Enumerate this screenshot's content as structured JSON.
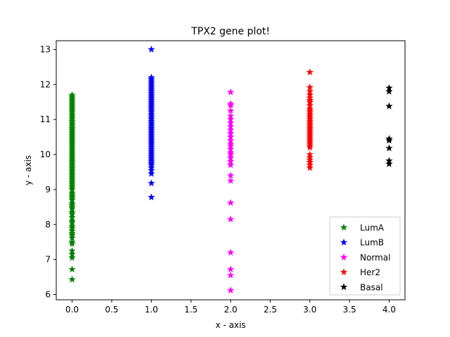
{
  "chart_data": {
    "type": "scatter",
    "title": "TPX2 gene plot!",
    "xlabel": "x - axis",
    "ylabel": "y - axis",
    "xlim": [
      -0.2,
      4.2
    ],
    "ylim": [
      5.85,
      13.25
    ],
    "x_ticks": [
      "0.0",
      "0.5",
      "1.0",
      "1.5",
      "2.0",
      "2.5",
      "3.0",
      "3.5",
      "4.0"
    ],
    "y_ticks": [
      "6",
      "7",
      "8",
      "9",
      "10",
      "11",
      "12",
      "13"
    ],
    "grid": false,
    "legend_position": "lower-right",
    "marker": "star",
    "series": [
      {
        "name": "LumA",
        "color": "#008000",
        "x": 0,
        "y": [
          6.43,
          6.72,
          7.05,
          7.15,
          7.25,
          7.45,
          7.5,
          7.62,
          7.7,
          7.75,
          7.82,
          7.9,
          7.95,
          8.05,
          8.1,
          8.2,
          8.3,
          8.35,
          8.45,
          8.5,
          8.55,
          8.6,
          8.7,
          8.75,
          8.8,
          8.85,
          8.9,
          9.0,
          9.05,
          9.1,
          9.15,
          9.2,
          9.25,
          9.3,
          9.35,
          9.4,
          9.45,
          9.5,
          9.55,
          9.6,
          9.65,
          9.7,
          9.75,
          9.8,
          9.85,
          9.9,
          9.95,
          10.0,
          10.05,
          10.1,
          10.15,
          10.2,
          10.25,
          10.3,
          10.35,
          10.4,
          10.45,
          10.5,
          10.55,
          10.6,
          10.65,
          10.7,
          10.75,
          10.8,
          10.85,
          10.9,
          10.95,
          11.0,
          11.05,
          11.1,
          11.15,
          11.2,
          11.25,
          11.3,
          11.35,
          11.4,
          11.45,
          11.5,
          11.55,
          11.6,
          11.65,
          11.7
        ]
      },
      {
        "name": "LumB",
        "color": "#0000ff",
        "x": 1,
        "y": [
          8.78,
          9.18,
          9.45,
          9.55,
          9.62,
          9.7,
          9.75,
          9.8,
          9.85,
          9.9,
          9.95,
          10.0,
          10.05,
          10.1,
          10.15,
          10.2,
          10.25,
          10.3,
          10.35,
          10.4,
          10.45,
          10.5,
          10.55,
          10.6,
          10.65,
          10.7,
          10.75,
          10.8,
          10.85,
          10.9,
          10.95,
          11.0,
          11.05,
          11.1,
          11.15,
          11.2,
          11.25,
          11.3,
          11.35,
          11.4,
          11.45,
          11.5,
          11.55,
          11.6,
          11.65,
          11.7,
          11.75,
          11.8,
          11.85,
          11.9,
          11.95,
          12.0,
          12.05,
          12.1,
          12.15,
          12.2,
          13.0
        ]
      },
      {
        "name": "Normal",
        "color": "#ff00ff",
        "x": 2,
        "y": [
          6.12,
          6.55,
          6.72,
          7.2,
          8.15,
          8.62,
          9.25,
          9.4,
          9.7,
          9.8,
          9.9,
          10.0,
          10.05,
          10.15,
          10.25,
          10.3,
          10.4,
          10.5,
          10.6,
          10.7,
          10.8,
          10.9,
          11.0,
          11.1,
          11.25,
          11.4,
          11.45,
          11.78
        ]
      },
      {
        "name": "Her2",
        "color": "#ff0000",
        "x": 3,
        "y": [
          9.62,
          9.7,
          9.78,
          9.85,
          9.92,
          10.0,
          10.2,
          10.25,
          10.3,
          10.35,
          10.4,
          10.45,
          10.5,
          10.55,
          10.6,
          10.65,
          10.7,
          10.75,
          10.8,
          10.85,
          10.9,
          10.95,
          11.0,
          11.05,
          11.1,
          11.15,
          11.2,
          11.25,
          11.3,
          11.4,
          11.5,
          11.55,
          11.62,
          11.7,
          11.8,
          11.92,
          12.35
        ]
      },
      {
        "name": "Basal",
        "color": "#000000",
        "x": 4,
        "y": [
          9.73,
          9.82,
          10.18,
          10.4,
          10.45,
          11.38,
          11.8,
          11.9
        ]
      }
    ]
  }
}
